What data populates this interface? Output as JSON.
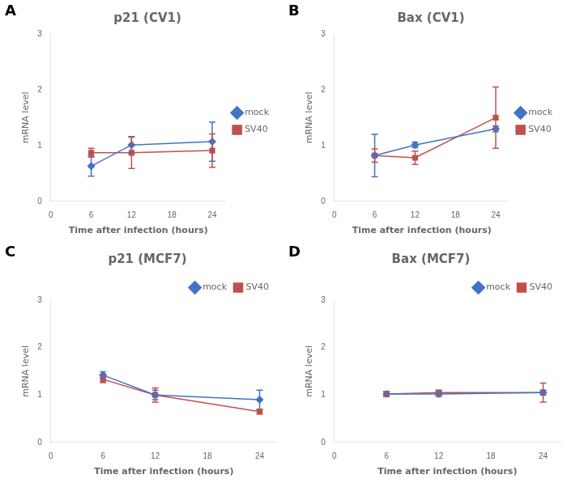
{
  "chart_data": [
    {
      "type": "line",
      "title": "p21 (CV1)",
      "annotations": [
        "A"
      ],
      "x": [
        6,
        12,
        24
      ],
      "series": [
        {
          "name": "mock",
          "color": "#4472C4",
          "marker": "diamond",
          "values": [
            0.63,
            1.01,
            1.07
          ],
          "errors": [
            0.18,
            0.15,
            0.35
          ]
        },
        {
          "name": "SV40",
          "color": "#C0504D",
          "marker": "square",
          "values": [
            0.87,
            0.87,
            0.91
          ],
          "errors": [
            0.08,
            0.28,
            0.3
          ]
        }
      ],
      "xlabel": "Time after infection (hours)",
      "ylabel": "mRNA level",
      "xlim": [
        0,
        26
      ],
      "xticks": [
        0,
        6,
        12,
        18,
        24
      ],
      "ylim": [
        0,
        3
      ],
      "yticks": [
        0,
        1,
        2,
        3
      ],
      "legend": "center right",
      "grid": false
    },
    {
      "type": "line",
      "title": "Bax (CV1)",
      "annotations": [
        "B"
      ],
      "x": [
        6,
        12,
        24
      ],
      "series": [
        {
          "name": "mock",
          "color": "#4472C4",
          "marker": "diamond",
          "values": [
            0.82,
            1.01,
            1.3
          ],
          "errors": [
            0.38,
            0.05,
            0.05
          ]
        },
        {
          "name": "SV40",
          "color": "#C0504D",
          "marker": "square",
          "values": [
            0.82,
            0.78,
            1.5
          ],
          "errors": [
            0.12,
            0.12,
            0.55
          ]
        }
      ],
      "xlabel": "Time after infection (hours)",
      "ylabel": "mRNA level",
      "xlim": [
        0,
        26
      ],
      "xticks": [
        0,
        6,
        12,
        18,
        24
      ],
      "ylim": [
        0,
        3
      ],
      "yticks": [
        0,
        1,
        2,
        3
      ],
      "legend": "center right",
      "grid": false
    },
    {
      "type": "line",
      "title": "p21 (MCF7)",
      "annotations": [
        "C"
      ],
      "x": [
        6,
        12,
        24
      ],
      "series": [
        {
          "name": "mock",
          "color": "#4472C4",
          "marker": "diamond",
          "values": [
            1.42,
            1.0,
            0.9
          ],
          "errors": [
            0.07,
            0.1,
            0.2
          ]
        },
        {
          "name": "SV40",
          "color": "#C0504D",
          "marker": "square",
          "values": [
            1.33,
            1.0,
            0.65
          ],
          "errors": [
            0.07,
            0.15,
            0.05
          ]
        }
      ],
      "xlabel": "Time after infection (hours)",
      "ylabel": "mRNA level",
      "xlim": [
        0,
        26
      ],
      "xticks": [
        0,
        6,
        12,
        18,
        24
      ],
      "ylim": [
        0,
        3
      ],
      "yticks": [
        0,
        1,
        2,
        3
      ],
      "legend": "upper right",
      "grid": false
    },
    {
      "type": "line",
      "title": "Bax (MCF7)",
      "annotations": [
        "D"
      ],
      "x": [
        6,
        12,
        24
      ],
      "series": [
        {
          "name": "mock",
          "color": "#4472C4",
          "marker": "diamond",
          "values": [
            1.02,
            1.02,
            1.05
          ],
          "errors": [
            0.05,
            0.05,
            0.05
          ]
        },
        {
          "name": "SV40",
          "color": "#C0504D",
          "marker": "square",
          "values": [
            1.02,
            1.05,
            1.05
          ],
          "errors": [
            0.05,
            0.05,
            0.2
          ]
        }
      ],
      "xlabel": "Time after infection (hours)",
      "ylabel": "mRNA level",
      "xlim": [
        0,
        26
      ],
      "xticks": [
        0,
        6,
        12,
        18,
        24
      ],
      "ylim": [
        0,
        3
      ],
      "yticks": [
        0,
        1,
        2,
        3
      ],
      "legend": "upper right",
      "grid": false
    }
  ]
}
